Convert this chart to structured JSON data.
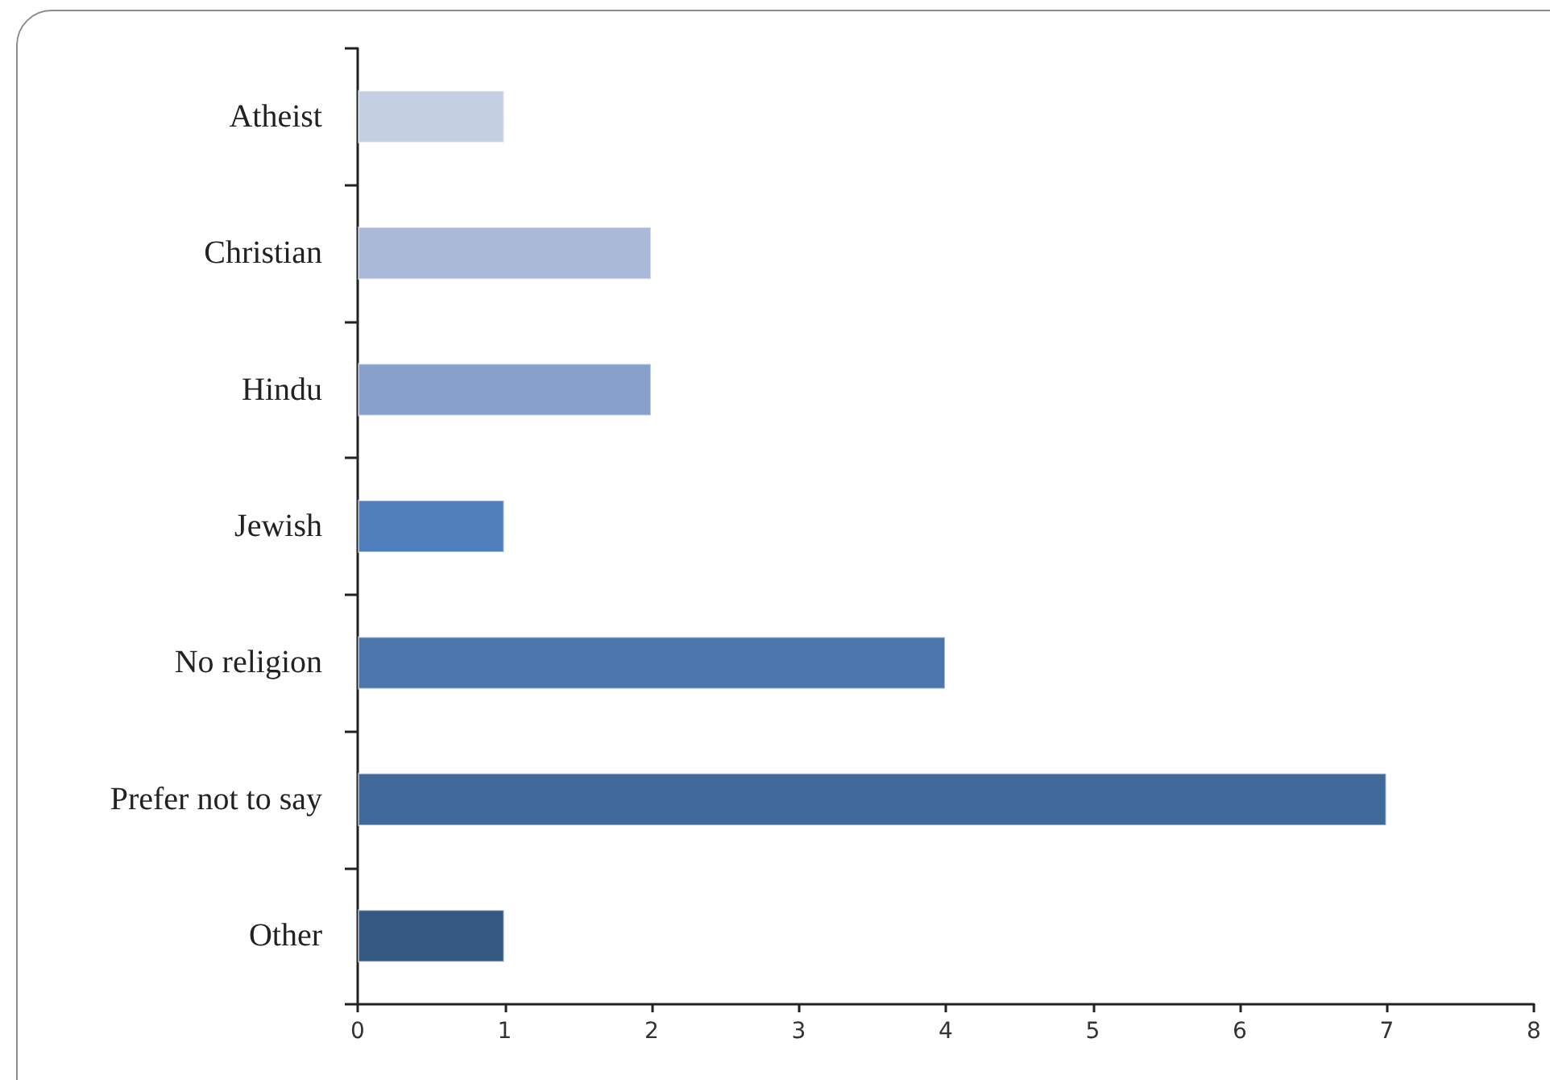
{
  "chart_data": {
    "type": "bar",
    "orientation": "horizontal",
    "categories": [
      "Atheist",
      "Christian",
      "Hindu",
      "Jewish",
      "No religion",
      "Prefer not to say",
      "Other"
    ],
    "values": [
      1,
      2,
      2,
      1,
      4,
      7,
      1
    ],
    "colors": [
      "#c4cfe2",
      "#a9b9d7",
      "#87a1cb",
      "#4f80bc",
      "#4a76ab",
      "#416a9b",
      "#355882"
    ],
    "xlim": [
      0,
      8
    ],
    "xticks": [
      0,
      1,
      2,
      3,
      4,
      5,
      6,
      7,
      8
    ],
    "grid": false
  }
}
